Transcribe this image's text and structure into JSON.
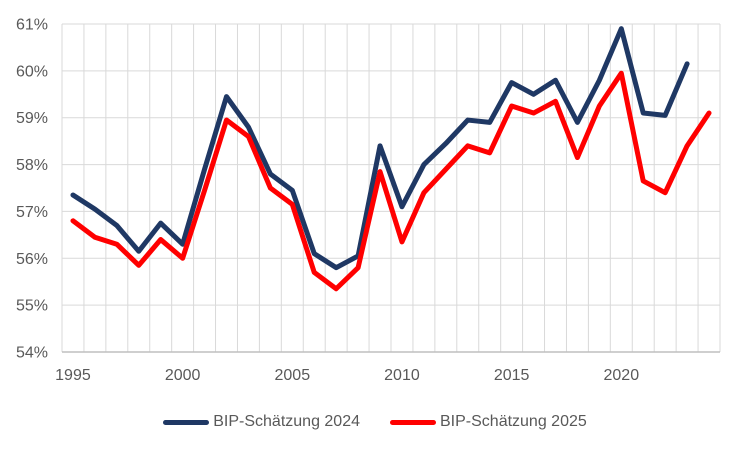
{
  "chart_data": {
    "type": "line",
    "title": "",
    "xlabel": "",
    "ylabel": "",
    "categories": [
      1995,
      1996,
      1997,
      1998,
      1999,
      2000,
      2001,
      2002,
      2003,
      2004,
      2005,
      2006,
      2007,
      2008,
      2009,
      2010,
      2011,
      2012,
      2013,
      2014,
      2015,
      2016,
      2017,
      2018,
      2019,
      2020,
      2021,
      2022,
      2023,
      2024
    ],
    "series": [
      {
        "name": "BIP-Schätzung 2024",
        "color": "#1f3864",
        "values": [
          57.35,
          57.05,
          56.7,
          56.15,
          56.75,
          56.3,
          57.9,
          59.45,
          58.8,
          57.8,
          57.45,
          56.1,
          55.8,
          56.05,
          58.4,
          57.1,
          58.0,
          58.45,
          58.95,
          58.9,
          59.75,
          59.5,
          59.8,
          58.9,
          59.8,
          60.9,
          59.1,
          59.05,
          60.15
        ]
      },
      {
        "name": "BIP-Schätzung 2025",
        "color": "#ff0000",
        "values": [
          56.8,
          56.45,
          56.3,
          55.85,
          56.4,
          56.0,
          57.45,
          58.95,
          58.6,
          57.5,
          57.15,
          55.7,
          55.35,
          55.8,
          57.85,
          56.35,
          57.4,
          57.9,
          58.4,
          58.25,
          59.25,
          59.1,
          59.35,
          58.15,
          59.25,
          59.95,
          57.65,
          57.4,
          58.4,
          59.1
        ]
      }
    ],
    "ylim": [
      54,
      61
    ],
    "y_ticks": [
      {
        "value": 61,
        "label": "61%"
      },
      {
        "value": 60,
        "label": "60%"
      },
      {
        "value": 59,
        "label": "59%"
      },
      {
        "value": 58,
        "label": "58%"
      },
      {
        "value": 57,
        "label": "57%"
      },
      {
        "value": 56,
        "label": "56%"
      },
      {
        "value": 55,
        "label": "55%"
      },
      {
        "value": 54,
        "label": "54%"
      }
    ],
    "x_ticks": [
      {
        "value": 1995,
        "label": "1995"
      },
      {
        "value": 2000,
        "label": "2000"
      },
      {
        "value": 2005,
        "label": "2005"
      },
      {
        "value": 2010,
        "label": "2010"
      },
      {
        "value": 2015,
        "label": "2015"
      },
      {
        "value": 2020,
        "label": "2020"
      }
    ],
    "grid": true,
    "legend_position": "bottom",
    "colors": {
      "gridline": "#d9d9d9",
      "axis_line": "#bfbfbf",
      "tick_text": "#595959",
      "background": "#ffffff"
    }
  }
}
